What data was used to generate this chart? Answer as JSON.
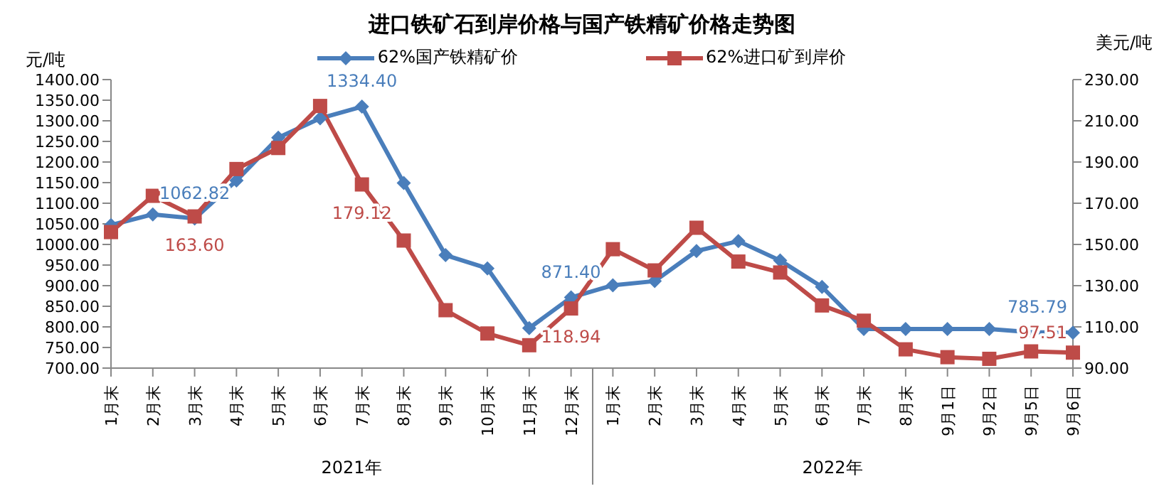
{
  "chart_data": {
    "type": "line",
    "title": "进口铁矿石到岸价格与国产铁精矿价格走势图",
    "ylabel": "元/吨",
    "y2label": "美元/吨",
    "categories": [
      "1月末",
      "2月末",
      "3月末",
      "4月末",
      "5月末",
      "6月末",
      "7月末",
      "8月末",
      "9月末",
      "10月末",
      "11月末",
      "12月末",
      "1月末",
      "2月末",
      "3月末",
      "4月末",
      "5月末",
      "6月末",
      "7月末",
      "8月末",
      "9月1日",
      "9月2日",
      "9月5日",
      "9月6日"
    ],
    "annotations": [
      "2021年",
      "2022年"
    ],
    "series": [
      {
        "name": "62%国产铁精矿价",
        "color": "#4a7ebb",
        "marker": "diamond",
        "values": [
          1047,
          1073,
          1062.82,
          1155,
          1259,
          1306,
          1334.4,
          1149,
          974,
          942,
          797,
          871.4,
          901,
          911,
          984,
          1008,
          961,
          897,
          795,
          795,
          795,
          795,
          787,
          785.79
        ],
        "value_labels": [
          null,
          null,
          "1062.82",
          null,
          null,
          null,
          "1334.40",
          null,
          null,
          null,
          null,
          "871.40",
          null,
          null,
          null,
          null,
          null,
          null,
          null,
          null,
          null,
          null,
          null,
          "785.79"
        ]
      },
      {
        "name": "62%进口矿到岸价",
        "color": "#be4b48",
        "marker": "square",
        "axis": "y2",
        "values": [
          156,
          173.6,
          163.6,
          186.6,
          196.8,
          217.2,
          179.12,
          151.9,
          118.1,
          106.8,
          101.1,
          118.94,
          147.7,
          137.4,
          158.1,
          141.7,
          136.4,
          120.4,
          113,
          99.1,
          95.3,
          94.5,
          98.1,
          97.51
        ],
        "value_labels": [
          null,
          null,
          "163.60",
          null,
          null,
          null,
          "179.12",
          null,
          null,
          null,
          null,
          "118.94",
          null,
          null,
          null,
          null,
          null,
          null,
          null,
          null,
          null,
          null,
          null,
          "97.51"
        ]
      }
    ],
    "ylim": [
      700,
      1400
    ],
    "yticks": [
      {
        "value": 700,
        "label": "700.00"
      },
      {
        "value": 750,
        "label": "750.00"
      },
      {
        "value": 800,
        "label": "800.00"
      },
      {
        "value": 850,
        "label": "850.00"
      },
      {
        "value": 900,
        "label": "900.00"
      },
      {
        "value": 950,
        "label": "950.00"
      },
      {
        "value": 1000,
        "label": "1000.00"
      },
      {
        "value": 1050,
        "label": "1050.00"
      },
      {
        "value": 1100,
        "label": "1100.00"
      },
      {
        "value": 1150,
        "label": "1150.00"
      },
      {
        "value": 1200,
        "label": "1200.00"
      },
      {
        "value": 1250,
        "label": "1250.00"
      },
      {
        "value": 1300,
        "label": "1300.00"
      },
      {
        "value": 1350,
        "label": "1350.00"
      },
      {
        "value": 1400,
        "label": "1400.00"
      }
    ],
    "y2lim": [
      90,
      230
    ],
    "y2ticks": [
      {
        "value": 90,
        "label": "90.00"
      },
      {
        "value": 110,
        "label": "110.00"
      },
      {
        "value": 130,
        "label": "130.00"
      },
      {
        "value": 150,
        "label": "150.00"
      },
      {
        "value": 170,
        "label": "170.00"
      },
      {
        "value": 190,
        "label": "190.00"
      },
      {
        "value": 210,
        "label": "210.00"
      },
      {
        "value": 230,
        "label": "230.00"
      }
    ],
    "legend": "top",
    "grid": false
  }
}
